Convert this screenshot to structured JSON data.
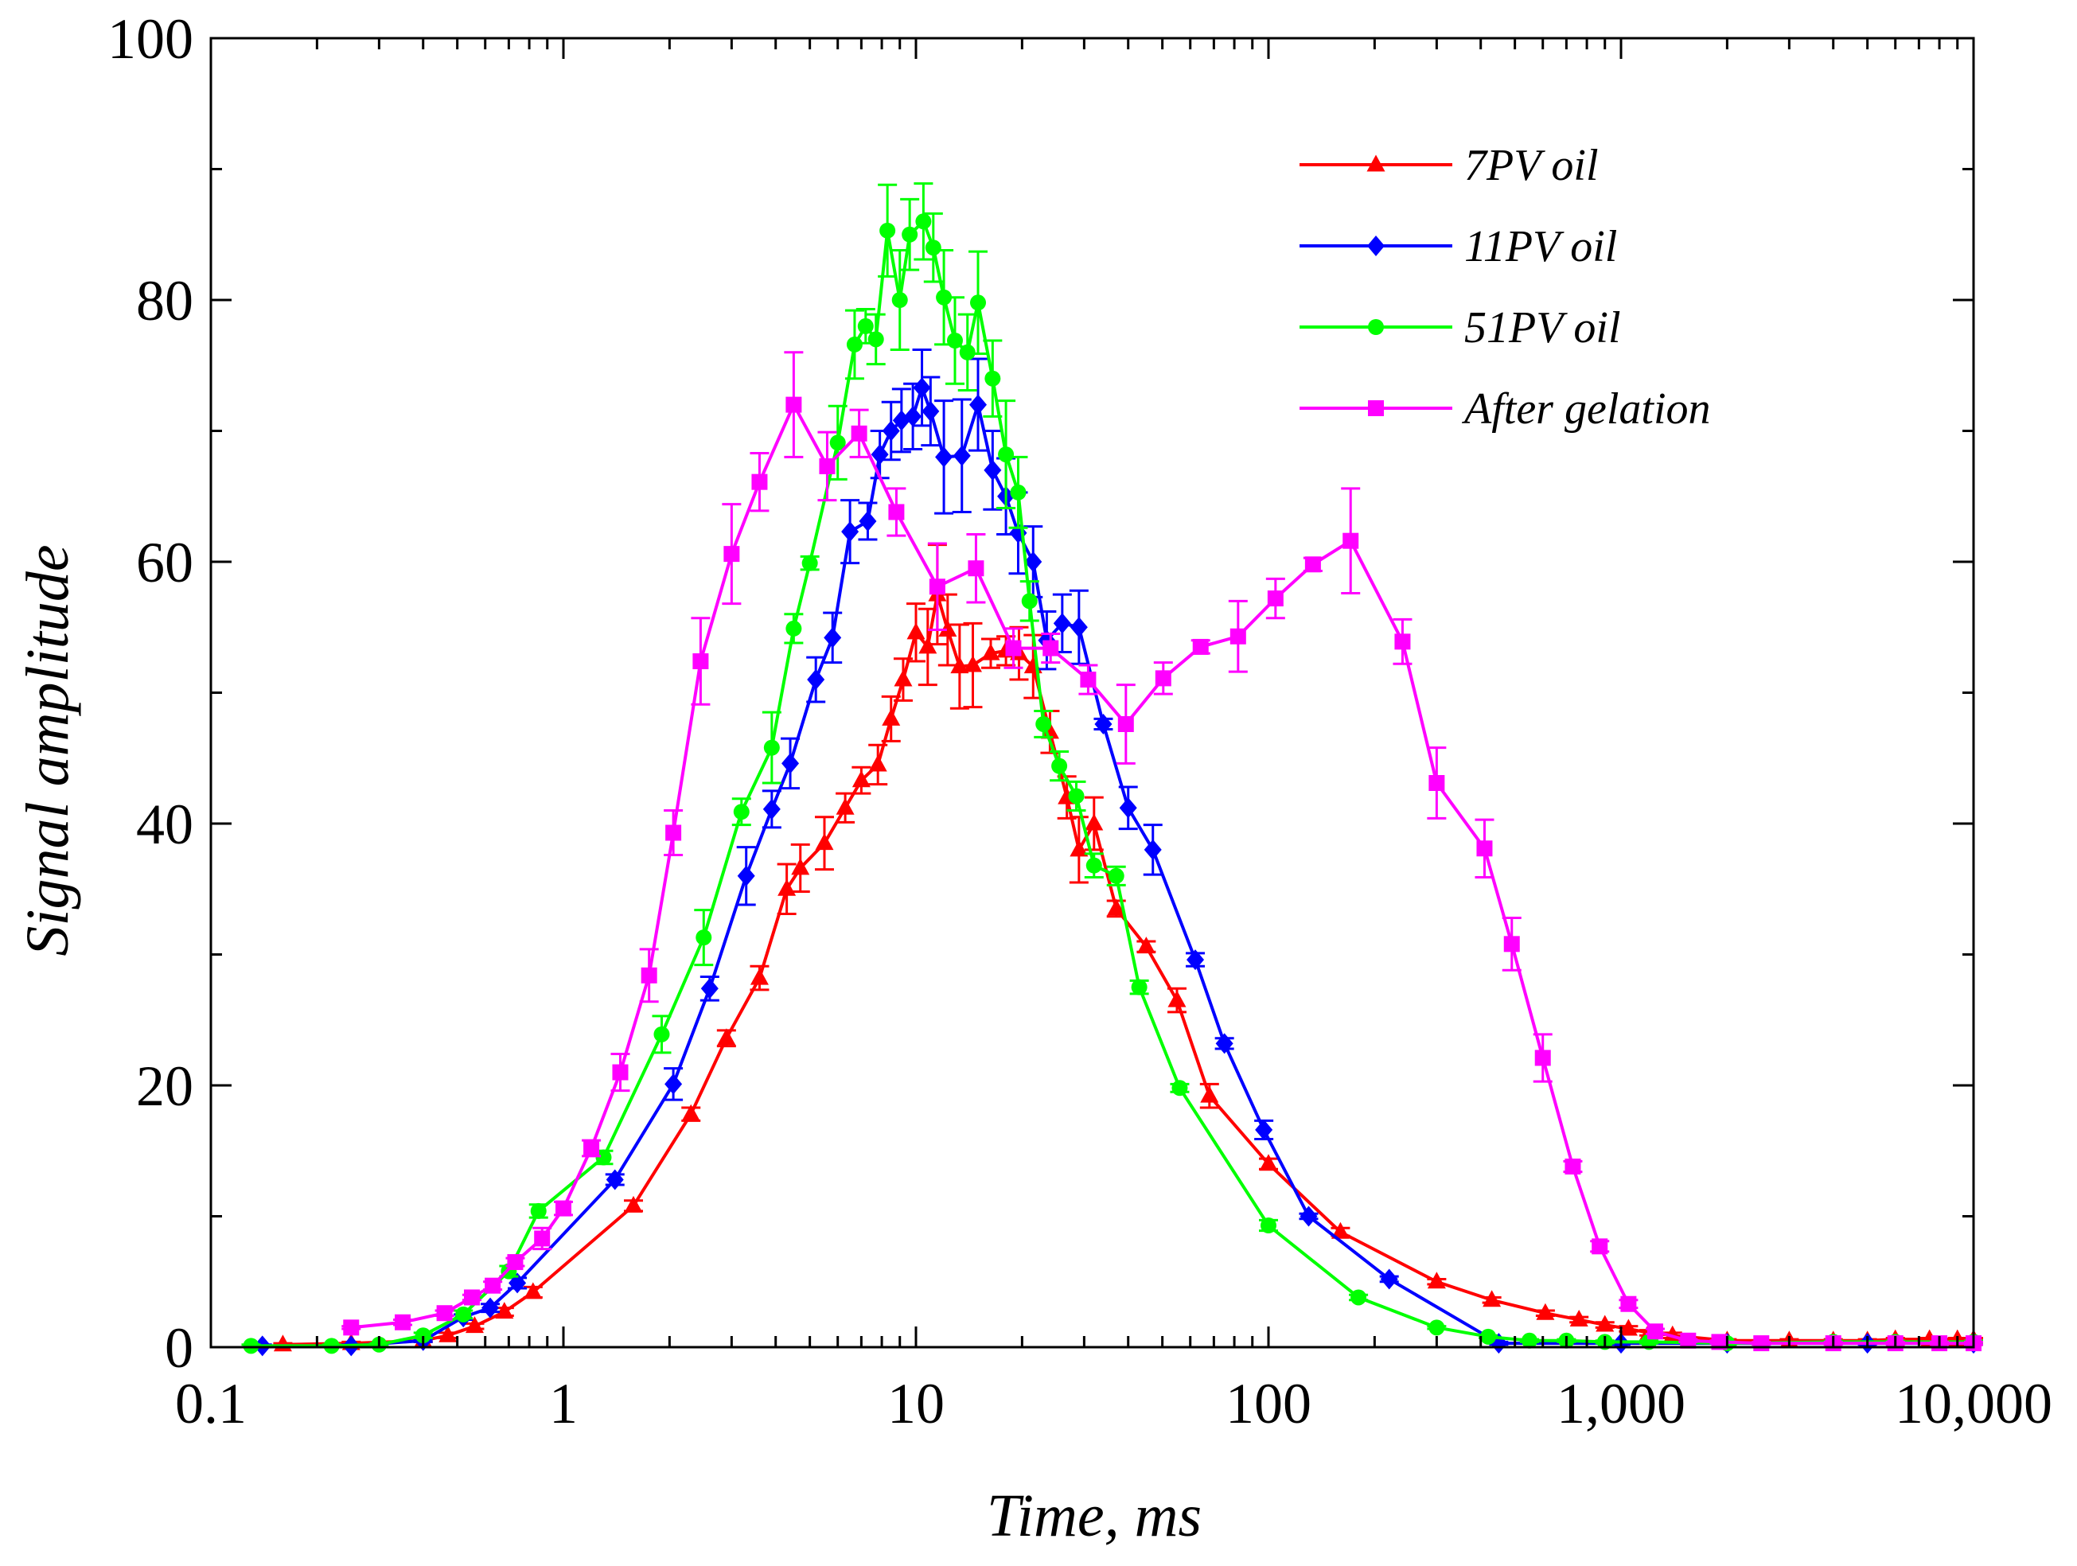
{
  "chart_data": {
    "type": "line",
    "title": "",
    "xlabel": "Time, ms",
    "ylabel": "Signal amplitude",
    "xscale": "log",
    "xlim": [
      0.1,
      10000
    ],
    "ylim": [
      0,
      100
    ],
    "x_ticks": [
      0.1,
      1,
      10,
      100,
      1000,
      10000
    ],
    "x_tick_labels": [
      "0.1",
      "1",
      "10",
      "100",
      "1,000",
      "10,000"
    ],
    "y_ticks": [
      0,
      20,
      40,
      60,
      80,
      100
    ],
    "y_tick_labels": [
      "0",
      "20",
      "40",
      "60",
      "80",
      "100"
    ],
    "grid": false,
    "legend_position": "top-right",
    "series": [
      {
        "name": "7PV oil",
        "color": "#ff0000",
        "marker": "triangle",
        "x": [
          0.16,
          0.25,
          0.4,
          0.47,
          0.56,
          0.68,
          0.82,
          1.58,
          2.3,
          2.9,
          3.6,
          4.3,
          4.7,
          5.5,
          6.3,
          7.0,
          7.8,
          8.5,
          9.2,
          10.0,
          10.8,
          11.5,
          12.3,
          13.3,
          14.5,
          16.3,
          18.0,
          19.6,
          21.5,
          24.0,
          26.8,
          29.0,
          32.0,
          37.0,
          45.0,
          55.0,
          68.0,
          100.0,
          160.0,
          300.0,
          430.0,
          610.0,
          760.0,
          900.0,
          1050.0,
          1200.0,
          1400.0,
          2000.0,
          3000.0,
          4000.0,
          5000.0,
          6000.0,
          7500.0,
          9000.0,
          10000.0
        ],
        "y": [
          0.2,
          0.3,
          0.5,
          0.9,
          1.6,
          2.7,
          4.2,
          10.8,
          17.8,
          23.6,
          28.2,
          35.0,
          36.6,
          38.5,
          41.2,
          43.3,
          44.5,
          48.0,
          51.0,
          54.6,
          53.5,
          57.5,
          54.8,
          52.0,
          52.1,
          53.0,
          53.2,
          53.0,
          52.0,
          47.0,
          42.0,
          38.0,
          40.0,
          33.5,
          30.6,
          26.5,
          19.2,
          14.0,
          8.8,
          5.0,
          3.6,
          2.6,
          2.1,
          1.7,
          1.4,
          1.1,
          0.9,
          0.5,
          0.5,
          0.5,
          0.5,
          0.6,
          0.6,
          0.6,
          0.6
        ],
        "err": [
          0.1,
          0.1,
          0.1,
          0.2,
          0.2,
          0.3,
          0.4,
          0.4,
          0.5,
          0.6,
          0.9,
          1.9,
          1.8,
          2.0,
          1.1,
          1.0,
          1.5,
          1.7,
          1.6,
          2.2,
          2.9,
          3.8,
          2.7,
          3.2,
          3.2,
          1.1,
          1.1,
          2.0,
          2.4,
          1.6,
          1.6,
          2.5,
          2.0,
          0.6,
          0.4,
          0.9,
          0.9,
          0.4,
          0.3,
          0.2,
          0.2,
          0.2,
          0.2,
          0.2,
          0.2,
          0.2,
          0.2,
          0.1,
          0.1,
          0.1,
          0.1,
          0.1,
          0.1,
          0.1,
          0.1
        ]
      },
      {
        "name": "11PV oil",
        "color": "#0000ff",
        "marker": "diamond",
        "x": [
          0.14,
          0.25,
          0.4,
          0.52,
          0.62,
          0.74,
          1.4,
          2.05,
          2.6,
          3.3,
          3.9,
          4.4,
          5.2,
          5.8,
          6.5,
          7.3,
          7.9,
          8.5,
          9.1,
          9.8,
          10.4,
          11.0,
          12.0,
          13.5,
          15.0,
          16.5,
          18.0,
          19.5,
          21.5,
          23.5,
          26.0,
          29.0,
          34.0,
          40.0,
          47.0,
          62.0,
          75.0,
          97.0,
          130.0,
          220.0,
          450.0,
          1000.0,
          2000.0,
          5000.0,
          10000.0
        ],
        "y": [
          0.1,
          0.1,
          0.5,
          2.3,
          3.0,
          4.9,
          12.8,
          20.1,
          27.4,
          36.0,
          41.1,
          44.6,
          51.0,
          54.2,
          62.3,
          63.1,
          68.2,
          70.0,
          70.8,
          71.1,
          73.3,
          71.5,
          68.0,
          68.1,
          72.0,
          67.0,
          65.0,
          62.2,
          60.0,
          54.0,
          55.3,
          55.0,
          47.6,
          41.2,
          38.0,
          29.6,
          23.2,
          16.6,
          10.0,
          5.2,
          0.3,
          0.3,
          0.3,
          0.3,
          0.3
        ],
        "err": [
          0.1,
          0.1,
          0.1,
          0.2,
          0.3,
          0.4,
          0.4,
          1.2,
          0.9,
          2.2,
          1.4,
          1.9,
          1.7,
          1.9,
          2.4,
          1.4,
          1.8,
          2.2,
          2.4,
          2.5,
          2.9,
          2.6,
          4.3,
          4.3,
          3.5,
          3.0,
          2.9,
          3.1,
          2.7,
          2.2,
          2.2,
          2.8,
          0.4,
          1.6,
          1.9,
          0.5,
          0.4,
          0.7,
          0.2,
          0.2,
          0.1,
          0.1,
          0.1,
          0.1,
          0.1
        ]
      },
      {
        "name": "51PV oil",
        "color": "#00ff00",
        "marker": "circle",
        "x": [
          0.13,
          0.22,
          0.3,
          0.4,
          0.52,
          0.7,
          0.85,
          1.3,
          1.9,
          2.5,
          3.2,
          3.9,
          4.5,
          5.0,
          6.0,
          6.7,
          7.2,
          7.7,
          8.3,
          9.0,
          9.6,
          10.5,
          11.2,
          12.0,
          12.9,
          14.0,
          15.0,
          16.5,
          18.0,
          19.5,
          21.0,
          23.0,
          25.5,
          28.5,
          32.0,
          37.0,
          43.0,
          56.0,
          100.0,
          180.0,
          300.0,
          420.0,
          550.0,
          700.0,
          900.0,
          1200.0,
          2000.0,
          4000.0,
          6000.0,
          10000.0
        ],
        "y": [
          0.1,
          0.1,
          0.2,
          0.9,
          2.5,
          5.8,
          10.4,
          14.5,
          23.9,
          31.3,
          40.9,
          45.8,
          54.9,
          59.9,
          69.1,
          76.6,
          78.0,
          77.0,
          85.3,
          80.0,
          85.0,
          86.0,
          84.0,
          80.2,
          76.9,
          76.0,
          79.8,
          74.0,
          68.2,
          65.3,
          57.0,
          47.6,
          44.4,
          42.1,
          36.8,
          36.0,
          27.5,
          19.8,
          9.3,
          3.8,
          1.5,
          0.8,
          0.5,
          0.5,
          0.4,
          0.4,
          0.3,
          0.4,
          0.4,
          0.4
        ],
        "err": [
          0.1,
          0.1,
          0.1,
          0.2,
          0.3,
          0.4,
          0.5,
          0.5,
          1.4,
          2.1,
          1.0,
          2.7,
          1.1,
          0.5,
          2.8,
          2.6,
          1.3,
          1.9,
          3.5,
          3.8,
          2.7,
          2.9,
          2.6,
          3.6,
          3.3,
          2.9,
          3.9,
          2.9,
          4.1,
          2.7,
          1.5,
          1.0,
          1.1,
          1.1,
          0.9,
          0.7,
          0.5,
          0.3,
          0.4,
          0.2,
          0.1,
          0.1,
          0.1,
          0.1,
          0.1,
          0.1,
          0.1,
          0.1,
          0.1,
          0.1
        ]
      },
      {
        "name": "After gelation",
        "color": "#ff00ff",
        "marker": "square",
        "x": [
          0.25,
          0.35,
          0.46,
          0.55,
          0.63,
          0.73,
          0.87,
          1.0,
          1.2,
          1.45,
          1.75,
          2.05,
          2.45,
          3.0,
          3.6,
          4.5,
          5.6,
          6.9,
          8.8,
          11.5,
          14.8,
          18.9,
          24.1,
          30.8,
          39.4,
          50.3,
          64.2,
          82.0,
          104.7,
          133.7,
          171.0,
          240.0,
          300.0,
          410.0,
          490.0,
          600.0,
          730.0,
          870.0,
          1050.0,
          1250.0,
          1550.0,
          1900.0,
          2500.0,
          4000.0,
          6000.0,
          8000.0,
          10000.0
        ],
        "y": [
          1.5,
          1.9,
          2.6,
          3.8,
          4.7,
          6.5,
          8.3,
          10.6,
          15.2,
          21.0,
          28.4,
          39.3,
          52.4,
          60.6,
          66.1,
          72.0,
          67.3,
          69.8,
          63.8,
          58.1,
          59.5,
          53.4,
          53.4,
          51.0,
          47.6,
          51.1,
          53.5,
          54.3,
          57.2,
          59.8,
          61.6,
          53.9,
          43.1,
          38.1,
          30.8,
          22.1,
          13.8,
          7.7,
          3.3,
          1.2,
          0.5,
          0.4,
          0.3,
          0.3,
          0.3,
          0.3,
          0.3
        ],
        "err": [
          0.1,
          0.2,
          0.2,
          0.2,
          0.3,
          0.3,
          0.8,
          0.5,
          0.6,
          1.4,
          2.0,
          1.7,
          3.3,
          3.8,
          2.2,
          4.0,
          2.6,
          1.8,
          1.8,
          3.3,
          2.6,
          1.5,
          1.1,
          1.1,
          3.0,
          1.2,
          0.5,
          2.7,
          1.5,
          0.5,
          4.0,
          1.7,
          2.7,
          2.2,
          2.0,
          1.8,
          0.4,
          0.4,
          0.3,
          0.2,
          0.1,
          0.1,
          0.1,
          0.1,
          0.1,
          0.1,
          0.1
        ]
      }
    ]
  }
}
